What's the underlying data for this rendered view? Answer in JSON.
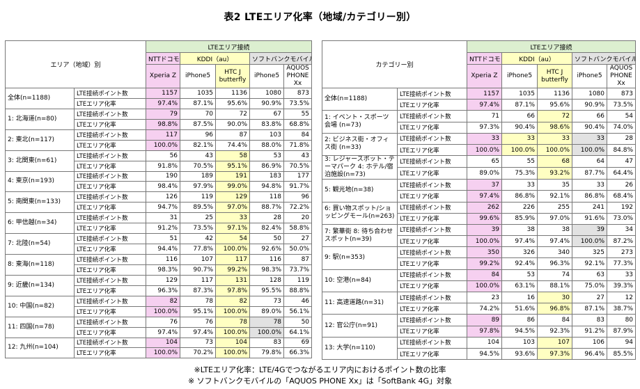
{
  "title": "表2 LTEエリア化率（地域/カテゴリー別）",
  "metrics": [
    "LTE接続ポイント数",
    "LTEエリア化率"
  ],
  "header": {
    "group": "LTEエリア接続",
    "carriers": [
      "NTTドコモ",
      "KDDI（au）",
      "ソフトバンクモバイル"
    ],
    "devices": [
      "Xperia Z",
      "iPhone5",
      "HTC J butterfly",
      "iPhone5",
      "AQUOS PHONE Xx"
    ]
  },
  "left_table": {
    "corner": "エリア（地域）別",
    "rows": [
      {
        "area": "全体(n=1188)",
        "counts": [
          "1157",
          "1035",
          "1136",
          "1080",
          "873"
        ],
        "rates": [
          "97.4%",
          "87.1%",
          "95.6%",
          "90.9%",
          "73.5%"
        ]
      },
      {
        "area": "1: 北海道(n=80)",
        "counts": [
          "79",
          "70",
          "72",
          "67",
          "55"
        ],
        "rates": [
          "98.8%",
          "87.5%",
          "90.0%",
          "83.8%",
          "68.8%"
        ]
      },
      {
        "area": "2: 東北(n=117)",
        "counts": [
          "117",
          "96",
          "87",
          "103",
          "84"
        ],
        "rates": [
          "100.0%",
          "82.1%",
          "74.4%",
          "88.0%",
          "71.8%"
        ]
      },
      {
        "area": "3: 北関東(n=61)",
        "counts": [
          "56",
          "43",
          "58",
          "53",
          "43"
        ],
        "rates": [
          "91.8%",
          "70.5%",
          "95.1%",
          "86.9%",
          "70.5%"
        ]
      },
      {
        "area": "4: 東京(n=193)",
        "counts": [
          "190",
          "189",
          "191",
          "183",
          "177"
        ],
        "rates": [
          "98.4%",
          "97.9%",
          "99.0%",
          "94.8%",
          "91.7%"
        ]
      },
      {
        "area": "5: 南関東(n=133)",
        "counts": [
          "126",
          "119",
          "129",
          "118",
          "96"
        ],
        "rates": [
          "94.7%",
          "89.5%",
          "97.0%",
          "88.7%",
          "72.2%"
        ]
      },
      {
        "area": "6: 甲信越(n=34)",
        "counts": [
          "31",
          "25",
          "33",
          "28",
          "20"
        ],
        "rates": [
          "91.2%",
          "73.5%",
          "97.1%",
          "82.4%",
          "58.8%"
        ]
      },
      {
        "area": "7: 北陸(n=54)",
        "counts": [
          "51",
          "42",
          "54",
          "50",
          "27"
        ],
        "rates": [
          "94.4%",
          "77.8%",
          "100.0%",
          "92.6%",
          "50.0%"
        ]
      },
      {
        "area": "8: 東海(n=118)",
        "counts": [
          "116",
          "107",
          "117",
          "116",
          "87"
        ],
        "rates": [
          "98.3%",
          "90.7%",
          "99.2%",
          "98.3%",
          "73.7%"
        ]
      },
      {
        "area": "9: 近畿(n=134)",
        "counts": [
          "129",
          "117",
          "131",
          "128",
          "119"
        ],
        "rates": [
          "96.3%",
          "87.3%",
          "97.8%",
          "95.5%",
          "88.8%"
        ]
      },
      {
        "area": "10: 中国(n=82)",
        "counts": [
          "82",
          "78",
          "82",
          "73",
          "46"
        ],
        "rates": [
          "100.0%",
          "95.1%",
          "100.0%",
          "89.0%",
          "56.1%"
        ]
      },
      {
        "area": "11: 四国(n=78)",
        "counts": [
          "76",
          "76",
          "78",
          "78",
          "50"
        ],
        "rates": [
          "97.4%",
          "97.4%",
          "100.0%",
          "100.0%",
          "64.1%"
        ]
      },
      {
        "area": "12: 九州(n=104)",
        "counts": [
          "104",
          "73",
          "104",
          "83",
          "69"
        ],
        "rates": [
          "100.0%",
          "70.2%",
          "100.0%",
          "79.8%",
          "66.3%"
        ]
      }
    ]
  },
  "right_table": {
    "corner": "カテゴリー別",
    "rows": [
      {
        "area": "全体(n=1188)",
        "counts": [
          "1157",
          "1035",
          "1136",
          "1080",
          "873"
        ],
        "rates": [
          "97.4%",
          "87.1%",
          "95.6%",
          "90.9%",
          "73.5%"
        ]
      },
      {
        "area": "1: イベント・スポーツ会場 (n=73)",
        "counts": [
          "71",
          "66",
          "72",
          "66",
          "54"
        ],
        "rates": [
          "97.3%",
          "90.4%",
          "98.6%",
          "90.4%",
          "74.0%"
        ]
      },
      {
        "area": "2: ビジネス街・オフィス街 (n=33)",
        "counts": [
          "33",
          "33",
          "33",
          "33",
          "28"
        ],
        "rates": [
          "100.0%",
          "100.0%",
          "100.0%",
          "100.0%",
          "84.8%"
        ]
      },
      {
        "area": "3: レジャースポット・テーマパーク 4: ホテル/宿泊施設(n=73)",
        "counts": [
          "65",
          "55",
          "68",
          "64",
          "47"
        ],
        "rates": [
          "89.0%",
          "75.3%",
          "93.2%",
          "87.7%",
          "64.4%"
        ]
      },
      {
        "area": "5: 観光地(n=38)",
        "counts": [
          "37",
          "33",
          "35",
          "33",
          "26"
        ],
        "rates": [
          "97.4%",
          "86.8%",
          "92.1%",
          "86.8%",
          "68.4%"
        ]
      },
      {
        "area": "6: 買い物スポット/ショッピングモール(n=263)",
        "counts": [
          "262",
          "226",
          "255",
          "241",
          "192"
        ],
        "rates": [
          "99.6%",
          "85.9%",
          "97.0%",
          "91.6%",
          "73.0%"
        ]
      },
      {
        "area": "7: 繁華街 8: 待ち合わせスポット(n=39)",
        "counts": [
          "39",
          "38",
          "38",
          "39",
          "34"
        ],
        "rates": [
          "100.0%",
          "97.4%",
          "97.4%",
          "100.0%",
          "87.2%"
        ]
      },
      {
        "area": "9: 駅(n=353)",
        "counts": [
          "350",
          "326",
          "340",
          "325",
          "273"
        ],
        "rates": [
          "99.2%",
          "92.4%",
          "96.3%",
          "92.1%",
          "77.3%"
        ]
      },
      {
        "area": "10: 空港(n=84)",
        "counts": [
          "84",
          "53",
          "74",
          "63",
          "33"
        ],
        "rates": [
          "100.0%",
          "63.1%",
          "88.1%",
          "75.0%",
          "39.3%"
        ]
      },
      {
        "area": "11: 高速道路(n=31)",
        "counts": [
          "23",
          "16",
          "30",
          "27",
          "12"
        ],
        "rates": [
          "74.2%",
          "51.6%",
          "96.8%",
          "87.1%",
          "38.7%"
        ]
      },
      {
        "area": "12: 官公庁(n=91)",
        "counts": [
          "89",
          "86",
          "84",
          "83",
          "80"
        ],
        "rates": [
          "97.8%",
          "94.5%",
          "92.3%",
          "91.2%",
          "87.9%"
        ]
      },
      {
        "area": "13: 大学(n=110)",
        "counts": [
          "104",
          "103",
          "107",
          "106",
          "94"
        ],
        "rates": [
          "94.5%",
          "93.6%",
          "97.3%",
          "96.4%",
          "85.5%"
        ]
      }
    ]
  },
  "highlight_colors": {
    "docomo": "#f6d0f0",
    "kddi": "#ffffc2",
    "softbank": "#e2e2e2",
    "header_group": "#dcefd0"
  },
  "notes": [
    "※LTEエリア化率：LTE/4Gでつながるエリア内におけるポイント数の比率",
    "※ ソフトバンクモバイルの「AQUOS PHONE Xx」は「SoftBank 4G」対象"
  ]
}
